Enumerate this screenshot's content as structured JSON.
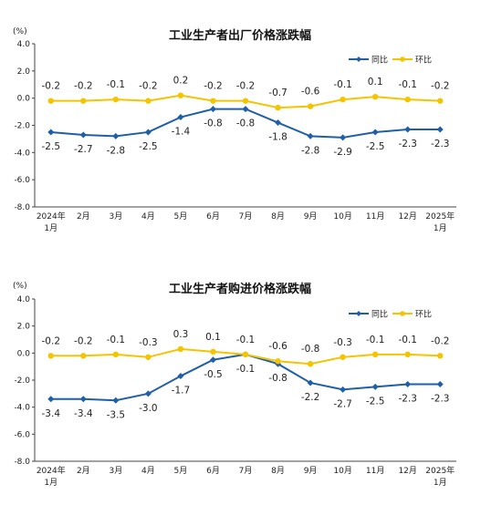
{
  "chart_data": [
    {
      "type": "line",
      "title": "工业生产者出厂价格涨跌幅",
      "unit": "(%)",
      "ylim": [
        -8.0,
        4.0
      ],
      "yticks": [
        "4.0",
        "2.0",
        "0.0",
        "-2.0",
        "-4.0",
        "-6.0",
        "-8.0"
      ],
      "ytick_values": [
        4,
        2,
        0,
        -2,
        -4,
        -6,
        -8
      ],
      "categories": [
        [
          "2024年",
          "1月"
        ],
        [
          "2月"
        ],
        [
          "3月"
        ],
        [
          "4月"
        ],
        [
          "5月"
        ],
        [
          "6月"
        ],
        [
          "7月"
        ],
        [
          "8月"
        ],
        [
          "9月"
        ],
        [
          "10月"
        ],
        [
          "11月"
        ],
        [
          "12月"
        ],
        [
          "2025年",
          "1月"
        ]
      ],
      "legend_position": "top-right",
      "series": [
        {
          "name": "同比",
          "color": "#1F5FA8",
          "marker": "diamond",
          "values": [
            -2.5,
            -2.7,
            -2.8,
            -2.5,
            -1.4,
            -0.8,
            -0.8,
            -1.8,
            -2.8,
            -2.9,
            -2.5,
            -2.3,
            -2.3
          ],
          "labels": [
            "-2.5",
            "-2.7",
            "-2.8",
            "-2.5",
            "-1.4",
            "-0.8",
            "-0.8",
            "-1.8",
            "-2.8",
            "-2.9",
            "-2.5",
            "-2.3",
            "-2.3"
          ]
        },
        {
          "name": "环比",
          "color": "#F5C400",
          "marker": "circle",
          "values": [
            -0.2,
            -0.2,
            -0.1,
            -0.2,
            0.2,
            -0.2,
            -0.2,
            -0.7,
            -0.6,
            -0.1,
            0.1,
            -0.1,
            -0.2
          ],
          "labels": [
            "-0.2",
            "-0.2",
            "-0.1",
            "-0.2",
            "0.2",
            "-0.2",
            "-0.2",
            "-0.7",
            "-0.6",
            "-0.1",
            "0.1",
            "-0.1",
            "-0.2"
          ]
        }
      ]
    },
    {
      "type": "line",
      "title": "工业生产者购进价格涨跌幅",
      "unit": "(%)",
      "ylim": [
        -8.0,
        4.0
      ],
      "yticks": [
        "4.0",
        "2.0",
        "0.0",
        "-2.0",
        "-4.0",
        "-6.0",
        "-8.0"
      ],
      "ytick_values": [
        4,
        2,
        0,
        -2,
        -4,
        -6,
        -8
      ],
      "categories": [
        [
          "2024年",
          "1月"
        ],
        [
          "2月"
        ],
        [
          "3月"
        ],
        [
          "4月"
        ],
        [
          "5月"
        ],
        [
          "6月"
        ],
        [
          "7月"
        ],
        [
          "8月"
        ],
        [
          "9月"
        ],
        [
          "10月"
        ],
        [
          "11月"
        ],
        [
          "12月"
        ],
        [
          "2025年",
          "1月"
        ]
      ],
      "legend_position": "top-right",
      "series": [
        {
          "name": "同比",
          "color": "#1F5FA8",
          "marker": "diamond",
          "values": [
            -3.4,
            -3.4,
            -3.5,
            -3.0,
            -1.7,
            -0.5,
            -0.1,
            -0.8,
            -2.2,
            -2.7,
            -2.5,
            -2.3,
            -2.3
          ],
          "labels": [
            "-3.4",
            "-3.4",
            "-3.5",
            "-3.0",
            "-1.7",
            "-0.5",
            "-0.1",
            "-0.8",
            "-2.2",
            "-2.7",
            "-2.5",
            "-2.3",
            "-2.3"
          ]
        },
        {
          "name": "环比",
          "color": "#F5C400",
          "marker": "circle",
          "values": [
            -0.2,
            -0.2,
            -0.1,
            -0.3,
            0.3,
            0.1,
            -0.1,
            -0.6,
            -0.8,
            -0.3,
            -0.1,
            -0.1,
            -0.2
          ],
          "labels": [
            "-0.2",
            "-0.2",
            "-0.1",
            "-0.3",
            "0.3",
            "0.1",
            "-0.1",
            "-0.6",
            "-0.8",
            "-0.3",
            "-0.1",
            "-0.1",
            "-0.2"
          ]
        }
      ]
    }
  ]
}
